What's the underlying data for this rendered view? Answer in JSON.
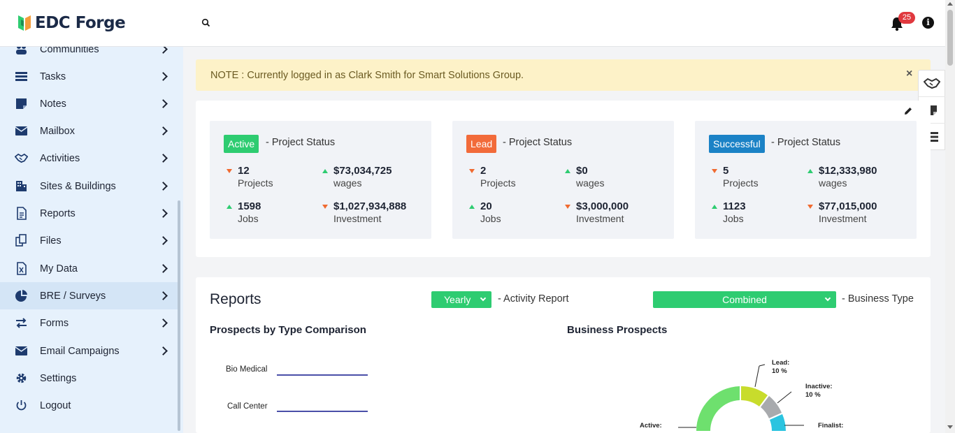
{
  "header": {
    "brand": "EDC Forge",
    "notifications_count": "25",
    "info_glyph": "i",
    "icons": [
      "search-icon",
      "bell-icon",
      "info-icon"
    ]
  },
  "sidebar": {
    "items": [
      {
        "label": "Communities",
        "icon": "users-icon"
      },
      {
        "label": "Tasks",
        "icon": "tasks-icon"
      },
      {
        "label": "Notes",
        "icon": "note-icon"
      },
      {
        "label": "Mailbox",
        "icon": "mail-icon"
      },
      {
        "label": "Activities",
        "icon": "handshake-icon"
      },
      {
        "label": "Sites & Buildings",
        "icon": "building-icon"
      },
      {
        "label": "Reports",
        "icon": "report-icon"
      },
      {
        "label": "Files",
        "icon": "files-icon"
      },
      {
        "label": "My Data",
        "icon": "excel-icon"
      },
      {
        "label": "BRE / Surveys",
        "icon": "pie-icon"
      },
      {
        "label": "Forms",
        "icon": "arrows-icon"
      },
      {
        "label": "Email Campaigns",
        "icon": "mail-icon"
      },
      {
        "label": "Settings",
        "icon": "gear-icon"
      },
      {
        "label": "Logout",
        "icon": "power-icon"
      }
    ],
    "active_index": 9
  },
  "note": {
    "text": "NOTE : Currently logged in as Clark Smith for Smart Solutions Group.",
    "close": "×"
  },
  "status_cards": [
    {
      "badge": "Active",
      "badge_color": "#2ecc71",
      "title": "- Project Status",
      "stats": [
        {
          "value": "12",
          "label": "Projects",
          "trend": "down"
        },
        {
          "value": "$73,034,725",
          "label": "wages",
          "trend": "up"
        },
        {
          "value": "1598",
          "label": "Jobs",
          "trend": "up"
        },
        {
          "value": "$1,027,934,888",
          "label": "Investment",
          "trend": "down"
        }
      ]
    },
    {
      "badge": "Lead",
      "badge_color": "#f26b3a",
      "title": "- Project Status",
      "stats": [
        {
          "value": "2",
          "label": "Projects",
          "trend": "down"
        },
        {
          "value": "$0",
          "label": "wages",
          "trend": "up"
        },
        {
          "value": "20",
          "label": "Jobs",
          "trend": "up"
        },
        {
          "value": "$3,000,000",
          "label": "Investment",
          "trend": "down"
        }
      ]
    },
    {
      "badge": "Successful",
      "badge_color": "#1b82c6",
      "title": "- Project Status",
      "stats": [
        {
          "value": "5",
          "label": "Projects",
          "trend": "down"
        },
        {
          "value": "$12,333,980",
          "label": "wages",
          "trend": "up"
        },
        {
          "value": "1123",
          "label": "Jobs",
          "trend": "up"
        },
        {
          "value": "$77,015,000",
          "label": "Investment",
          "trend": "down"
        }
      ]
    }
  ],
  "reports": {
    "title": "Reports",
    "period_select": "Yearly",
    "period_caption": "- Activity Report",
    "type_select": "Combined",
    "type_caption": "- Business Type",
    "left_chart_title": "Prospects by Type Comparison",
    "right_chart_title": "Business Prospects"
  },
  "chart_data": [
    {
      "type": "bar",
      "title": "Prospects by Type Comparison",
      "categories": [
        "Bio Medical",
        "Call Center"
      ],
      "color": "#4a4fa8"
    },
    {
      "type": "pie",
      "title": "Business Prospects",
      "slices": [
        {
          "label": "Lead:",
          "value": "10 %",
          "color": "#c8dc2c"
        },
        {
          "label": "Inactive:",
          "value": "10 %",
          "color": "#a8aaad"
        },
        {
          "label": "Finalist:",
          "value": "10 %",
          "color": "#2bc4e0"
        },
        {
          "label": "Active:",
          "value": "",
          "color": "#6ee06e"
        }
      ]
    }
  ]
}
